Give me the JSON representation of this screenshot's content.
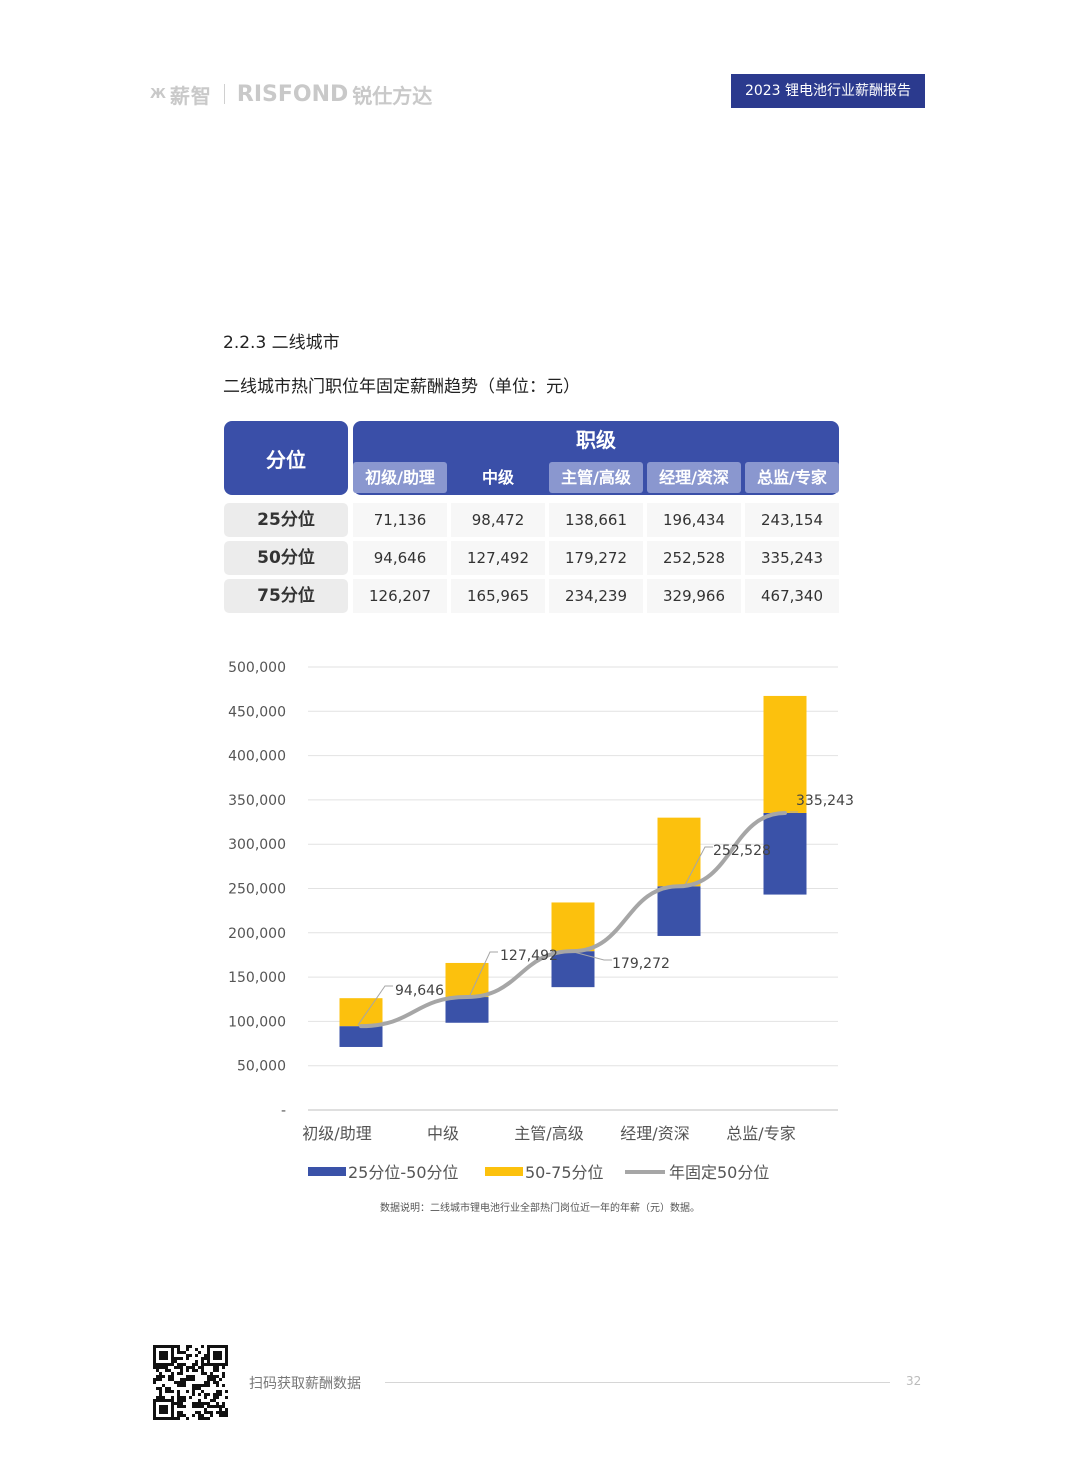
{
  "header": {
    "logo_mark": "Ж",
    "logo_cn": "薪智",
    "logo_en": "RISFOND",
    "logo_cn2": "锐仕方达",
    "report_title": "2023 锂电池行业薪酬报告"
  },
  "section_title": "2.2.3 二线城市",
  "chart_title": "二线城市热门职位年固定薪酬趋势（单位：元）",
  "table": {
    "corner_label": "分位",
    "group_label": "职级",
    "columns": [
      "初级/助理",
      "中级",
      "主管/高级",
      "经理/资深",
      "总监/专家"
    ],
    "rows": [
      {
        "label": "25分位",
        "values": [
          "71,136",
          "98,472",
          "138,661",
          "196,434",
          "243,154"
        ]
      },
      {
        "label": "50分位",
        "values": [
          "94,646",
          "127,492",
          "179,272",
          "252,528",
          "335,243"
        ]
      },
      {
        "label": "75分位",
        "values": [
          "126,207",
          "165,965",
          "234,239",
          "329,966",
          "467,340"
        ]
      }
    ]
  },
  "chart_data": {
    "type": "bar",
    "categories": [
      "初级/助理",
      "中级",
      "主管/高级",
      "经理/资深",
      "总监/专家"
    ],
    "series": [
      {
        "name": "25分位-50分位",
        "color": "#3a52a8",
        "from": [
          71136,
          98472,
          138661,
          196434,
          243154
        ],
        "to": [
          94646,
          127492,
          179272,
          252528,
          335243
        ]
      },
      {
        "name": "50-75分位",
        "color": "#fcc10d",
        "from": [
          94646,
          127492,
          179272,
          252528,
          335243
        ],
        "to": [
          126207,
          165965,
          234239,
          329966,
          467340
        ]
      },
      {
        "name": "年固定50分位",
        "type": "line",
        "color": "#a6a6a6",
        "values": [
          94646,
          127492,
          179272,
          252528,
          335243
        ]
      }
    ],
    "data_labels": [
      "94,646",
      "127,492",
      "179,272",
      "252,528",
      "335,243"
    ],
    "ylim": [
      0,
      500000
    ],
    "yticks": [
      0,
      50000,
      100000,
      150000,
      200000,
      250000,
      300000,
      350000,
      400000,
      450000,
      500000
    ],
    "ytick_labels": [
      "-",
      "50,000",
      "100,000",
      "150,000",
      "200,000",
      "250,000",
      "300,000",
      "350,000",
      "400,000",
      "450,000",
      "500,000"
    ],
    "grid": true,
    "legend": "bottom"
  },
  "footnote": "数据说明：二线城市锂电池行业全部热门岗位近一年的年薪（元）数据。",
  "footer": {
    "scan_text": "扫码获取薪酬数据",
    "page_number": "32"
  }
}
